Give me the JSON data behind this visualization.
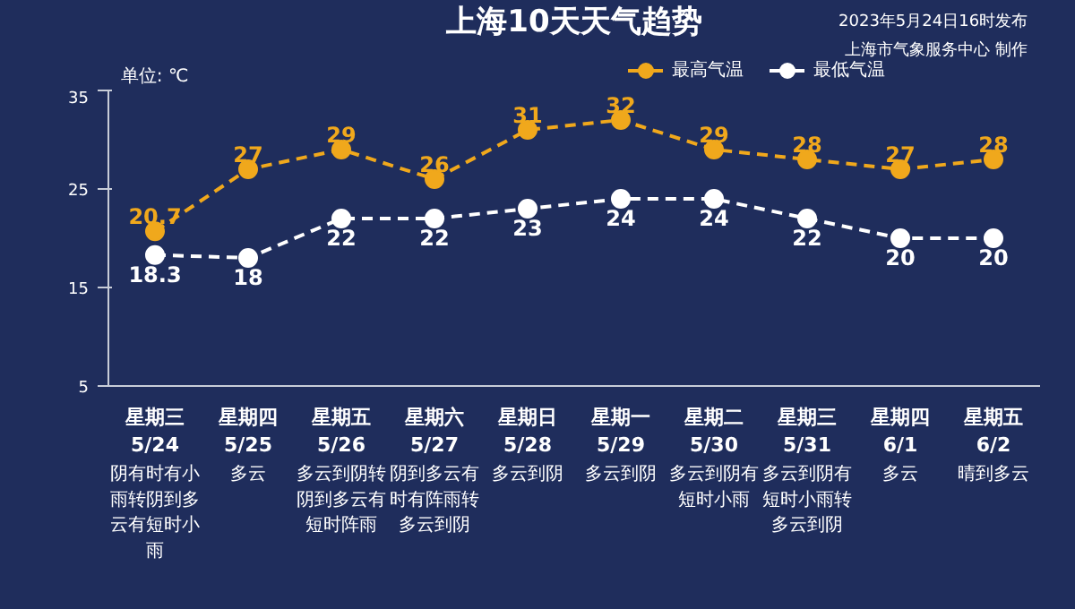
{
  "chart_data": {
    "type": "line",
    "title": "上海10天天气趋势",
    "ylabel": "单位: ℃",
    "categories": [
      "星期三\n5/24",
      "星期四\n5/25",
      "星期五\n5/26",
      "星期六\n5/27",
      "星期日\n5/28",
      "星期一\n5/29",
      "星期二\n5/30",
      "星期三\n5/31",
      "星期四\n6/1",
      "星期五\n6/2"
    ],
    "series": [
      {
        "name": "最高气温",
        "color": "#f0a81c",
        "values": [
          20.7,
          27,
          29,
          26,
          31,
          32,
          29,
          28,
          27,
          28
        ]
      },
      {
        "name": "最低气温",
        "color": "#ffffff",
        "values": [
          18.3,
          18,
          22,
          22,
          23,
          24,
          24,
          22,
          20,
          20
        ]
      }
    ],
    "ylim": [
      5,
      35
    ],
    "yticks": [
      5,
      15,
      25,
      35
    ],
    "grid": false,
    "legend": "top right",
    "marker": "circle",
    "line_style": "dashed",
    "data_labels": true,
    "annotations": [
      "阴有时有小雨转阴到多云有短时小雨",
      "多云",
      "多云到阴转阴到多云有短时阵雨",
      "阴到多云有时有阵雨转多云到阴",
      "多云到阴",
      "多云到阴",
      "多云到阴有短时小雨",
      "多云到阴有短时小雨转多云到阴",
      "多云",
      "晴到多云",
      "2023年5月24日16时发布",
      "上海市气象服务中心 制作"
    ]
  }
}
